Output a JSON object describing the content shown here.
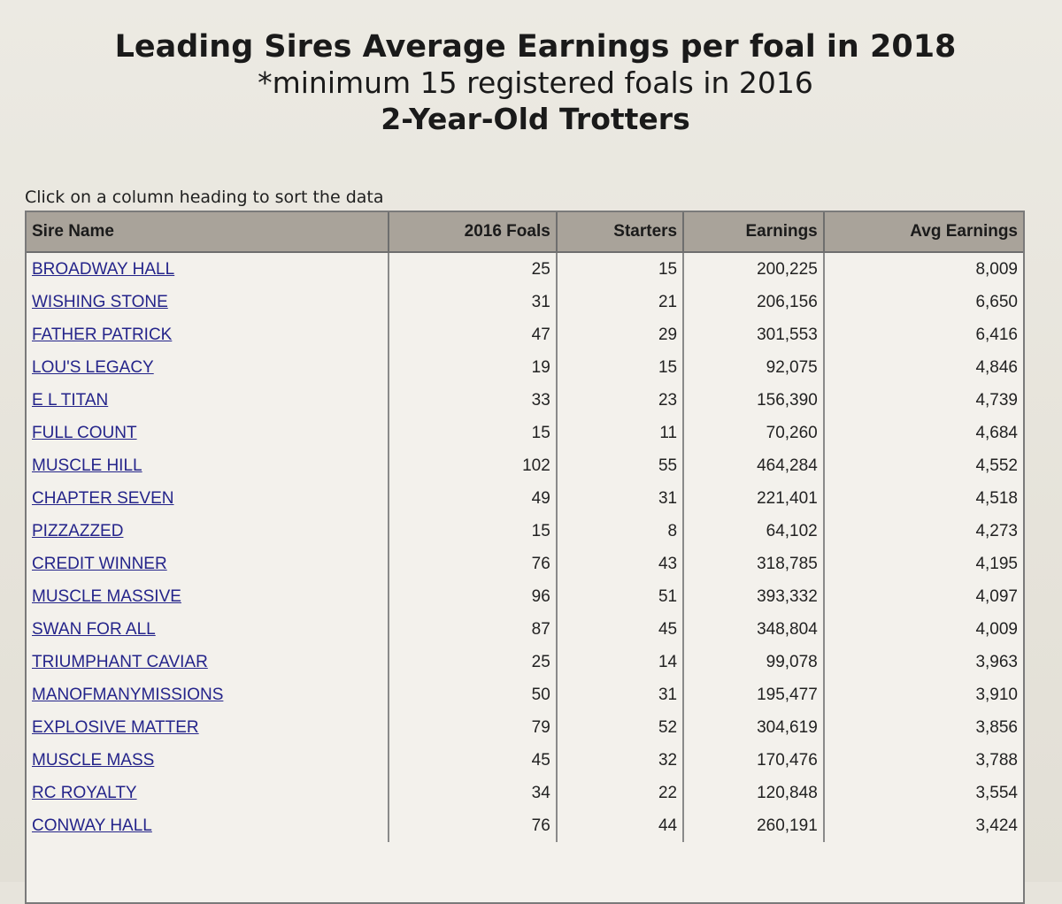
{
  "header": {
    "title": "Leading Sires Average Earnings per foal in 2018",
    "subtitle": "*minimum 15 registered foals in 2016",
    "category": "2-Year-Old Trotters"
  },
  "hint": "Click on a column heading to sort the data",
  "table": {
    "columns": [
      "Sire Name",
      "2016 Foals",
      "Starters",
      "Earnings",
      "Avg Earnings"
    ],
    "rows": [
      {
        "sire": "BROADWAY HALL",
        "foals": "25",
        "starters": "15",
        "earnings": "200,225",
        "avg": "8,009"
      },
      {
        "sire": "WISHING STONE",
        "foals": "31",
        "starters": "21",
        "earnings": "206,156",
        "avg": "6,650"
      },
      {
        "sire": "FATHER PATRICK",
        "foals": "47",
        "starters": "29",
        "earnings": "301,553",
        "avg": "6,416"
      },
      {
        "sire": "LOU'S LEGACY",
        "foals": "19",
        "starters": "15",
        "earnings": "92,075",
        "avg": "4,846"
      },
      {
        "sire": "E L TITAN",
        "foals": "33",
        "starters": "23",
        "earnings": "156,390",
        "avg": "4,739"
      },
      {
        "sire": "FULL COUNT",
        "foals": "15",
        "starters": "11",
        "earnings": "70,260",
        "avg": "4,684"
      },
      {
        "sire": "MUSCLE HILL",
        "foals": "102",
        "starters": "55",
        "earnings": "464,284",
        "avg": "4,552"
      },
      {
        "sire": "CHAPTER SEVEN",
        "foals": "49",
        "starters": "31",
        "earnings": "221,401",
        "avg": "4,518"
      },
      {
        "sire": "PIZZAZZED",
        "foals": "15",
        "starters": "8",
        "earnings": "64,102",
        "avg": "4,273"
      },
      {
        "sire": "CREDIT WINNER",
        "foals": "76",
        "starters": "43",
        "earnings": "318,785",
        "avg": "4,195"
      },
      {
        "sire": "MUSCLE MASSIVE",
        "foals": "96",
        "starters": "51",
        "earnings": "393,332",
        "avg": "4,097"
      },
      {
        "sire": "SWAN FOR ALL",
        "foals": "87",
        "starters": "45",
        "earnings": "348,804",
        "avg": "4,009"
      },
      {
        "sire": "TRIUMPHANT CAVIAR",
        "foals": "25",
        "starters": "14",
        "earnings": "99,078",
        "avg": "3,963"
      },
      {
        "sire": "MANOFMANYMISSIONS",
        "foals": "50",
        "starters": "31",
        "earnings": "195,477",
        "avg": "3,910"
      },
      {
        "sire": "EXPLOSIVE MATTER",
        "foals": "79",
        "starters": "52",
        "earnings": "304,619",
        "avg": "3,856"
      },
      {
        "sire": "MUSCLE MASS",
        "foals": "45",
        "starters": "32",
        "earnings": "170,476",
        "avg": "3,788"
      },
      {
        "sire": "RC ROYALTY",
        "foals": "34",
        "starters": "22",
        "earnings": "120,848",
        "avg": "3,554"
      },
      {
        "sire": "CONWAY HALL",
        "foals": "76",
        "starters": "44",
        "earnings": "260,191",
        "avg": "3,424"
      }
    ]
  }
}
